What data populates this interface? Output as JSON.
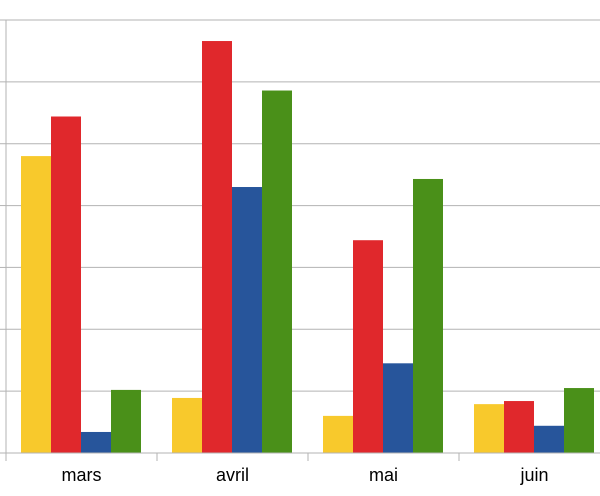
{
  "chart_data": {
    "type": "bar",
    "categories": [
      "mars",
      "avril",
      "mai",
      "juin"
    ],
    "series": [
      {
        "color": "#f8c92c",
        "values": [
          4.8,
          0.89,
          0.6,
          0.79
        ]
      },
      {
        "color": "#e0282c",
        "values": [
          5.44,
          6.66,
          3.44,
          0.84
        ]
      },
      {
        "color": "#27559b",
        "values": [
          0.34,
          4.3,
          1.45,
          0.44
        ]
      },
      {
        "color": "#4a9019",
        "values": [
          1.02,
          5.86,
          4.43,
          1.05
        ]
      }
    ],
    "ylim": [
      0,
      7
    ],
    "yticks": [
      0,
      1,
      2,
      3,
      4,
      5,
      6,
      7
    ],
    "grid": true
  }
}
